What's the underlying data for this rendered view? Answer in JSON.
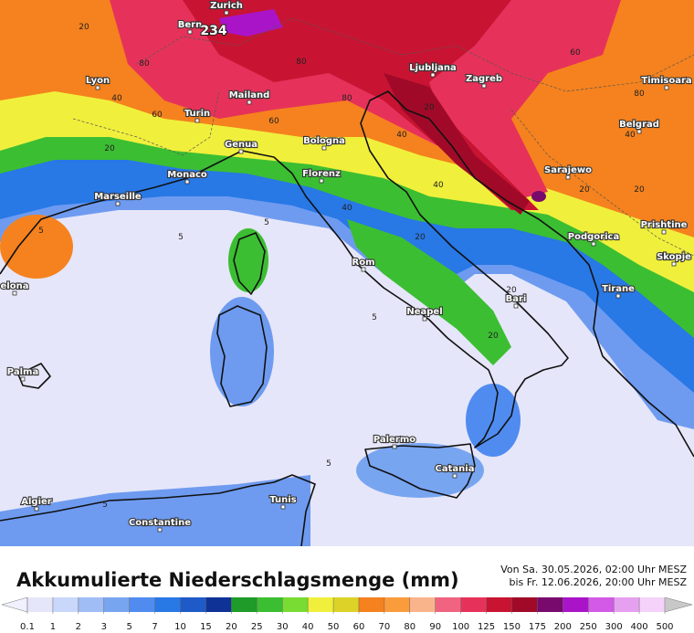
{
  "map": {
    "cities": [
      "Zurich",
      "Bern",
      "Lyon",
      "Ljubljana",
      "Zagreb",
      "Timisoara",
      "Mailand",
      "Turin",
      "Belgrad",
      "Genua",
      "Bologna",
      "Sarajewo",
      "Monaco",
      "Florenz",
      "Marseille",
      "Prishtine",
      "Podgorica",
      "Skopje",
      "Rom",
      "elona",
      "Tirane",
      "Bari",
      "Neapel",
      "Palma",
      "Palermo",
      "Catania",
      "Algier",
      "Tunis",
      "Constantine"
    ],
    "max_label": "234",
    "contour_labels": [
      20,
      40,
      80,
      60,
      80,
      60,
      80,
      40,
      20,
      20,
      40,
      60,
      80,
      40,
      20,
      40,
      20,
      5,
      5,
      5,
      5,
      20,
      20,
      20,
      5,
      5
    ]
  },
  "legend": {
    "title": "Akkumulierte Niederschlagsmenge (mm)",
    "period": [
      "Von Sa. 30.05.2026, 02:00 Uhr MESZ",
      "bis Fr. 12.06.2026, 20:00 Uhr MESZ"
    ],
    "ticks": [
      0.1,
      1,
      2,
      3,
      5,
      7,
      10,
      15,
      20,
      25,
      30,
      40,
      50,
      60,
      70,
      80,
      90,
      100,
      125,
      150,
      175,
      200,
      250,
      300,
      400,
      500
    ],
    "colors": [
      "#e6e6fa",
      "#c8d7fa",
      "#a0bef5",
      "#78a5f0",
      "#508cf0",
      "#2878e6",
      "#1e5ac8",
      "#0f3296",
      "#1e9b28",
      "#3cbe32",
      "#78dc32",
      "#f0f03c",
      "#dcd228",
      "#f5821e",
      "#fa9b3c",
      "#fab48c",
      "#f06482",
      "#e6325a",
      "#c81432",
      "#a00a28",
      "#780a6e",
      "#aa14c8",
      "#d25ae6",
      "#e6a0f0",
      "#f5d2fa"
    ]
  }
}
